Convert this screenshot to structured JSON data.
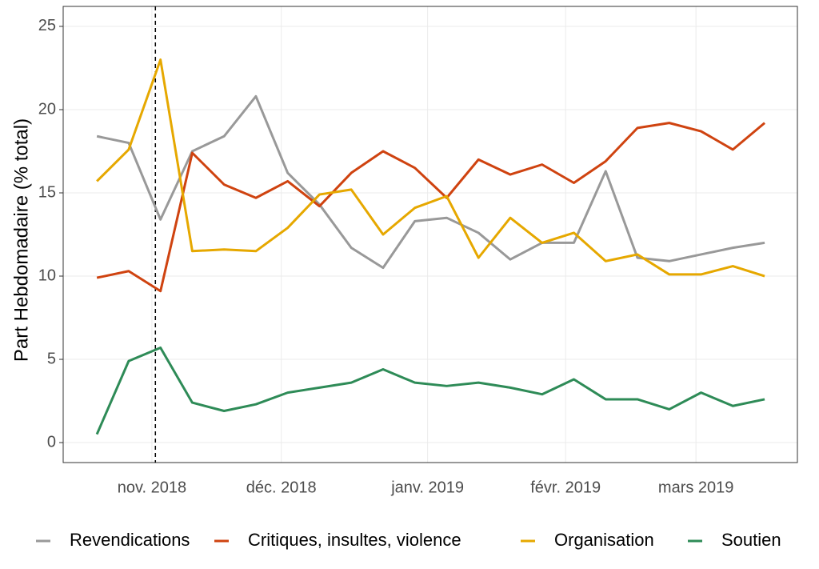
{
  "chart_data": {
    "type": "line",
    "ylabel": "Part Hebdomadaire (% total)",
    "categories": [
      null,
      null,
      null,
      null,
      null,
      null,
      null,
      null,
      null,
      null,
      null,
      null,
      null,
      null,
      null,
      null,
      null,
      null,
      null,
      null,
      null,
      null
    ],
    "xlim": [
      -1.06,
      22.03
    ],
    "xticks": [
      {
        "value": 1.73,
        "label": "nov. 2018"
      },
      {
        "value": 5.8,
        "label": "déc. 2018"
      },
      {
        "value": 10.4,
        "label": "janv. 2019"
      },
      {
        "value": 14.74,
        "label": "févr. 2019"
      },
      {
        "value": 18.84,
        "label": "mars 2019"
      }
    ],
    "ylim": [
      -1.2,
      26.2
    ],
    "yticks": [
      0,
      5,
      10,
      15,
      20,
      25
    ],
    "grid": true,
    "vline_x": 1.84,
    "legend": "bottom",
    "series": [
      {
        "name": "Revendications",
        "color": "#999999",
        "values": [
          18.4,
          18.0,
          13.4,
          17.5,
          18.4,
          20.8,
          16.2,
          14.3,
          11.7,
          10.5,
          13.3,
          13.5,
          12.6,
          11.0,
          12.0,
          12.0,
          16.3,
          11.1,
          10.9,
          11.3,
          11.7,
          12.0
        ]
      },
      {
        "name": "Critiques, insultes, violence",
        "color": "#cf4310",
        "values": [
          9.9,
          10.3,
          9.1,
          17.4,
          15.5,
          14.7,
          15.7,
          14.2,
          16.2,
          17.5,
          16.5,
          14.7,
          17.0,
          16.1,
          16.7,
          15.6,
          16.9,
          18.9,
          19.2,
          18.7,
          17.6,
          19.2
        ]
      },
      {
        "name": "Organisation",
        "color": "#e6a800",
        "values": [
          15.7,
          17.6,
          23.0,
          11.5,
          11.6,
          11.5,
          12.9,
          14.9,
          15.2,
          12.5,
          14.1,
          14.8,
          11.1,
          13.5,
          12.0,
          12.6,
          10.9,
          11.3,
          10.1,
          10.1,
          10.6,
          10.0
        ]
      },
      {
        "name": "Soutien",
        "color": "#2e8b57",
        "values": [
          0.5,
          4.9,
          5.7,
          2.4,
          1.9,
          2.3,
          3.0,
          3.3,
          3.6,
          4.4,
          3.6,
          3.4,
          3.6,
          3.3,
          2.9,
          3.8,
          2.6,
          2.6,
          2.0,
          3.0,
          2.2,
          2.6
        ]
      }
    ]
  }
}
